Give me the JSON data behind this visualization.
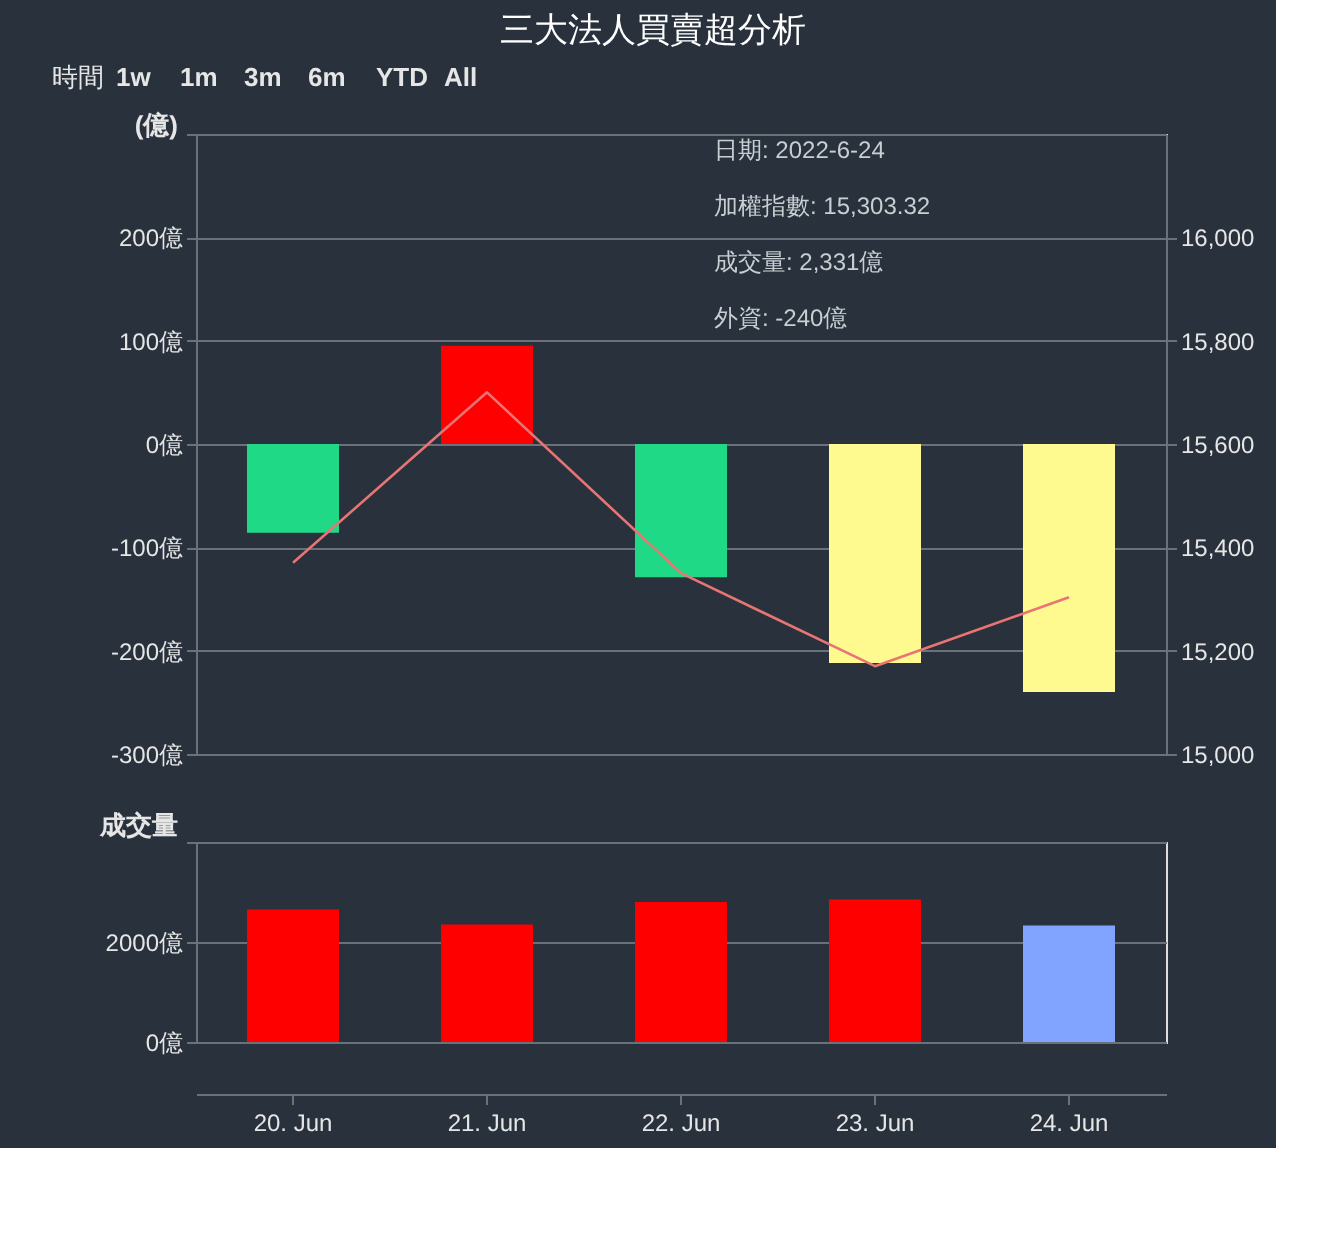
{
  "chart_data": [
    {
      "type": "bar",
      "title": "三大法人買賣超分析",
      "ylabel": "(億)",
      "categories": [
        "20. Jun",
        "21. Jun",
        "22. Jun",
        "23. Jun",
        "24. Jun"
      ],
      "series": [
        {
          "values": [
            -86,
            95,
            -129,
            -212,
            -240
          ],
          "colors": [
            "#20d987",
            "#ff0000",
            "#20d987",
            "#fffa90",
            "#fffa90"
          ]
        },
        {
          "type": "line",
          "axis": "y2",
          "color": "#e87474",
          "values": [
            15370,
            15700,
            15350,
            15170,
            15303.32
          ]
        }
      ],
      "ylim": [
        -300,
        300
      ],
      "yticks": [
        {
          "value": -300,
          "label": "-300億"
        },
        {
          "value": -200,
          "label": "-200億"
        },
        {
          "value": -100,
          "label": "-100億"
        },
        {
          "value": 0,
          "label": "0億"
        },
        {
          "value": 100,
          "label": "100億"
        },
        {
          "value": 200,
          "label": "200億"
        },
        {
          "value": 300,
          "label": null
        }
      ],
      "y2lim": [
        15000,
        16200
      ],
      "y2ticks": [
        {
          "value": 15000,
          "label": "15,000"
        },
        {
          "value": 15200,
          "label": "15,200"
        },
        {
          "value": 15400,
          "label": "15,400"
        },
        {
          "value": 15600,
          "label": "15,600"
        },
        {
          "value": 15800,
          "label": "15,800"
        },
        {
          "value": 16000,
          "label": "16,000"
        }
      ],
      "grid": "y",
      "tick_labels": "y",
      "annotations": [
        "時間",
        "1w",
        "1m",
        "3m",
        "6m",
        "YTD",
        "All",
        "日期: 2022-6-24",
        "加權指數: 15,303.32",
        "成交量: 2,331億",
        "外資: -240億"
      ]
    },
    {
      "type": "bar",
      "ylabel": "成交量",
      "categories": [
        "20. Jun",
        "21. Jun",
        "22. Jun",
        "23. Jun",
        "24. Jun"
      ],
      "values": [
        2650,
        2350,
        2800,
        2850,
        2331
      ],
      "colors": [
        "#ff0000",
        "#ff0000",
        "#ff0000",
        "#ff0000",
        "#80a4ff"
      ],
      "ylim": [
        0,
        4000
      ],
      "yticks": [
        {
          "value": 0,
          "label": "0億"
        },
        {
          "value": 2000,
          "label": "2000億"
        },
        {
          "value": 4000,
          "label": null
        }
      ],
      "grid": "y"
    }
  ]
}
